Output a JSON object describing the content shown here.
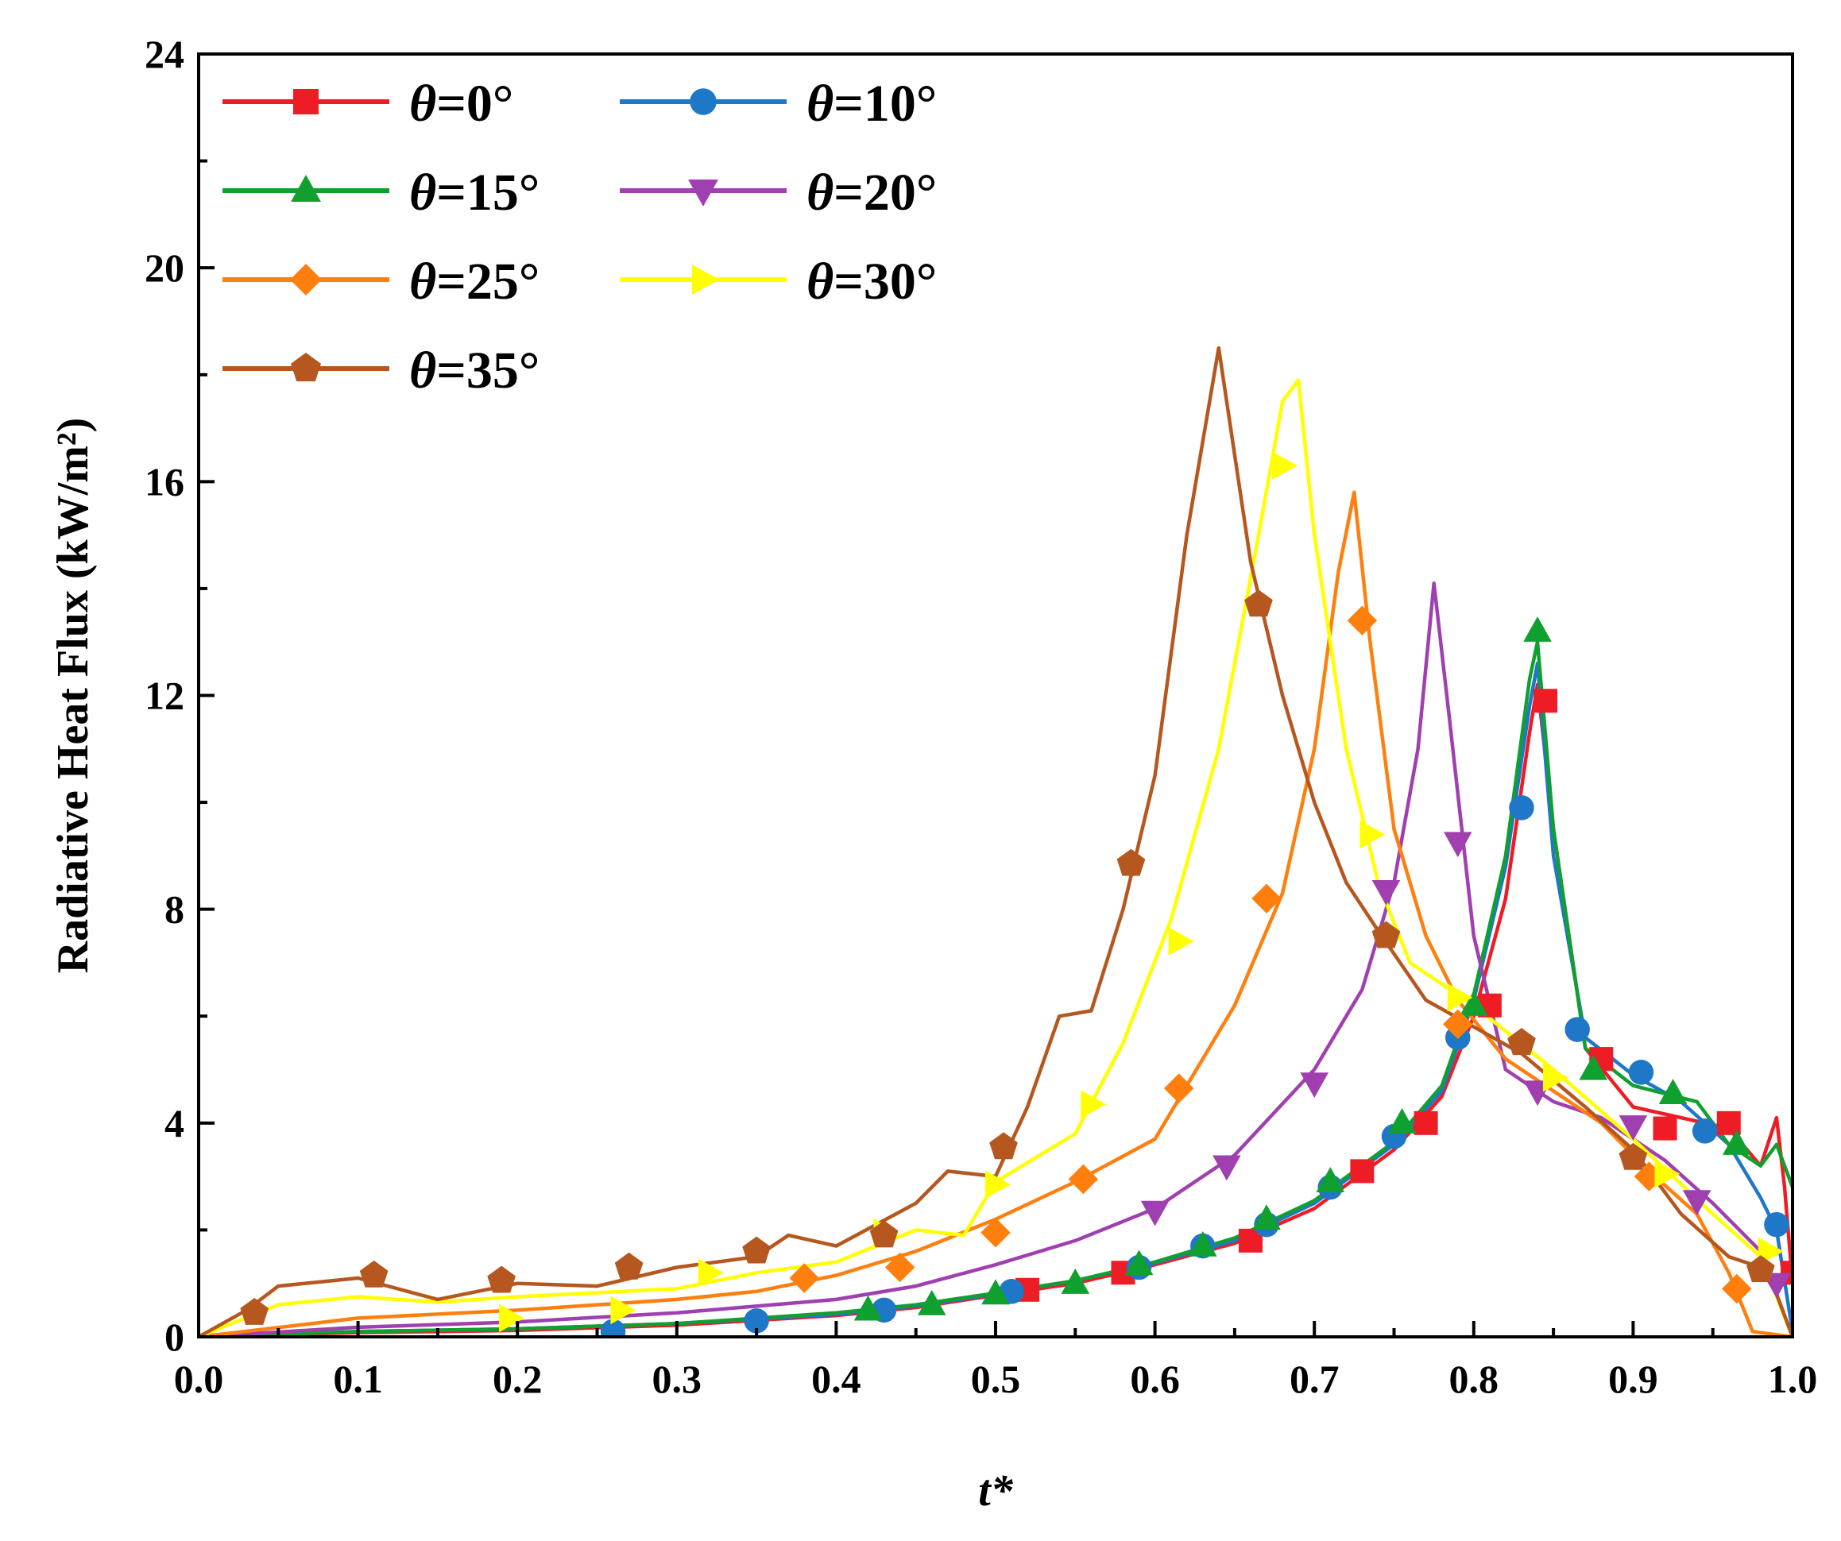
{
  "chart_data": {
    "type": "line",
    "title": "",
    "xlabel": "t*",
    "ylabel": "Radiative Heat Flux (kW/m²)",
    "xlim": [
      0.0,
      1.0
    ],
    "ylim": [
      0,
      24
    ],
    "xticks": [
      "0.0",
      "0.1",
      "0.2",
      "0.3",
      "0.4",
      "0.5",
      "0.6",
      "0.7",
      "0.8",
      "0.9",
      "1.0"
    ],
    "yticks": [
      "0",
      "4",
      "8",
      "12",
      "16",
      "20",
      "24"
    ],
    "legend_position": "top-left",
    "series": [
      {
        "name": "θ=0°",
        "prefix": "θ",
        "suffix": "=0°",
        "color": "#ee1c25",
        "marker": "square",
        "points": [
          [
            0,
            0
          ],
          [
            0.1,
            0.08
          ],
          [
            0.2,
            0.12
          ],
          [
            0.3,
            0.22
          ],
          [
            0.4,
            0.4
          ],
          [
            0.45,
            0.55
          ],
          [
            0.5,
            0.78
          ],
          [
            0.55,
            1.0
          ],
          [
            0.6,
            1.35
          ],
          [
            0.65,
            1.75
          ],
          [
            0.7,
            2.4
          ],
          [
            0.75,
            3.5
          ],
          [
            0.78,
            4.5
          ],
          [
            0.8,
            6.0
          ],
          [
            0.82,
            8.2
          ],
          [
            0.835,
            11.3
          ],
          [
            0.84,
            12.2
          ],
          [
            0.85,
            9.5
          ],
          [
            0.87,
            5.4
          ],
          [
            0.9,
            4.3
          ],
          [
            0.93,
            4.1
          ],
          [
            0.96,
            3.9
          ],
          [
            0.98,
            3.2
          ],
          [
            0.99,
            4.1
          ],
          [
            0.995,
            2.8
          ],
          [
            1.0,
            1.0
          ]
        ],
        "markers": [
          [
            0.52,
            0.88
          ],
          [
            0.58,
            1.2
          ],
          [
            0.66,
            1.8
          ],
          [
            0.73,
            3.1
          ],
          [
            0.77,
            4.0
          ],
          [
            0.81,
            6.2
          ],
          [
            0.845,
            11.9
          ],
          [
            0.88,
            5.2
          ],
          [
            0.92,
            3.9
          ],
          [
            0.96,
            4.0
          ],
          [
            1.0,
            1.2
          ]
        ]
      },
      {
        "name": "θ=10°",
        "prefix": "θ",
        "suffix": "=10°",
        "color": "#1f77c8",
        "marker": "circle",
        "points": [
          [
            0,
            0
          ],
          [
            0.1,
            0.1
          ],
          [
            0.2,
            0.15
          ],
          [
            0.3,
            0.25
          ],
          [
            0.4,
            0.42
          ],
          [
            0.45,
            0.58
          ],
          [
            0.5,
            0.8
          ],
          [
            0.55,
            1.05
          ],
          [
            0.6,
            1.38
          ],
          [
            0.65,
            1.8
          ],
          [
            0.7,
            2.5
          ],
          [
            0.75,
            3.6
          ],
          [
            0.78,
            4.6
          ],
          [
            0.8,
            6.3
          ],
          [
            0.82,
            8.8
          ],
          [
            0.835,
            11.8
          ],
          [
            0.84,
            12.6
          ],
          [
            0.85,
            9.0
          ],
          [
            0.87,
            5.6
          ],
          [
            0.9,
            4.9
          ],
          [
            0.93,
            4.4
          ],
          [
            0.96,
            3.6
          ],
          [
            0.98,
            2.6
          ],
          [
            0.99,
            2.0
          ],
          [
            1.0,
            0.1
          ]
        ],
        "markers": [
          [
            0.26,
            0.1
          ],
          [
            0.35,
            0.3
          ],
          [
            0.43,
            0.5
          ],
          [
            0.51,
            0.85
          ],
          [
            0.59,
            1.3
          ],
          [
            0.63,
            1.7
          ],
          [
            0.67,
            2.1
          ],
          [
            0.71,
            2.8
          ],
          [
            0.75,
            3.75
          ],
          [
            0.79,
            5.6
          ],
          [
            0.83,
            9.9
          ],
          [
            0.865,
            5.75
          ],
          [
            0.905,
            4.95
          ],
          [
            0.945,
            3.85
          ],
          [
            0.99,
            2.1
          ]
        ]
      },
      {
        "name": "θ=15°",
        "prefix": "θ",
        "suffix": "=15°",
        "color": "#10a030",
        "marker": "triangle-up",
        "points": [
          [
            0,
            0
          ],
          [
            0.1,
            0.1
          ],
          [
            0.2,
            0.15
          ],
          [
            0.3,
            0.25
          ],
          [
            0.4,
            0.45
          ],
          [
            0.45,
            0.6
          ],
          [
            0.5,
            0.82
          ],
          [
            0.55,
            1.05
          ],
          [
            0.6,
            1.4
          ],
          [
            0.65,
            1.85
          ],
          [
            0.7,
            2.55
          ],
          [
            0.75,
            3.65
          ],
          [
            0.78,
            4.7
          ],
          [
            0.8,
            6.4
          ],
          [
            0.82,
            9.0
          ],
          [
            0.835,
            12.3
          ],
          [
            0.84,
            13.0
          ],
          [
            0.85,
            9.5
          ],
          [
            0.87,
            5.4
          ],
          [
            0.9,
            4.7
          ],
          [
            0.94,
            4.4
          ],
          [
            0.96,
            3.6
          ],
          [
            0.98,
            3.2
          ],
          [
            0.99,
            3.6
          ],
          [
            1.0,
            2.8
          ]
        ],
        "markers": [
          [
            0.42,
            0.5
          ],
          [
            0.46,
            0.6
          ],
          [
            0.5,
            0.8
          ],
          [
            0.55,
            1.0
          ],
          [
            0.59,
            1.35
          ],
          [
            0.63,
            1.7
          ],
          [
            0.67,
            2.2
          ],
          [
            0.71,
            2.9
          ],
          [
            0.755,
            4.0
          ],
          [
            0.8,
            6.2
          ],
          [
            0.84,
            13.2
          ],
          [
            0.875,
            5.0
          ],
          [
            0.925,
            4.55
          ],
          [
            0.965,
            3.6
          ]
        ]
      },
      {
        "name": "θ=20°",
        "prefix": "θ",
        "suffix": "=20°",
        "color": "#a040b0",
        "marker": "triangle-down",
        "points": [
          [
            0,
            0
          ],
          [
            0.1,
            0.18
          ],
          [
            0.2,
            0.28
          ],
          [
            0.3,
            0.45
          ],
          [
            0.4,
            0.7
          ],
          [
            0.45,
            0.95
          ],
          [
            0.5,
            1.35
          ],
          [
            0.55,
            1.8
          ],
          [
            0.6,
            2.4
          ],
          [
            0.65,
            3.4
          ],
          [
            0.7,
            5.0
          ],
          [
            0.73,
            6.5
          ],
          [
            0.75,
            8.5
          ],
          [
            0.765,
            11.0
          ],
          [
            0.775,
            14.1
          ],
          [
            0.785,
            11.5
          ],
          [
            0.8,
            7.5
          ],
          [
            0.82,
            5.0
          ],
          [
            0.85,
            4.4
          ],
          [
            0.88,
            4.1
          ],
          [
            0.92,
            3.3
          ],
          [
            0.95,
            2.5
          ],
          [
            0.98,
            1.6
          ],
          [
            0.99,
            0.8
          ],
          [
            1.0,
            0.0
          ]
        ],
        "markers": [
          [
            0.6,
            2.35
          ],
          [
            0.645,
            3.2
          ],
          [
            0.7,
            4.75
          ],
          [
            0.745,
            8.35
          ],
          [
            0.79,
            9.25
          ],
          [
            0.84,
            4.6
          ],
          [
            0.9,
            3.95
          ],
          [
            0.94,
            2.55
          ],
          [
            0.99,
            1.0
          ]
        ]
      },
      {
        "name": "θ=25°",
        "prefix": "θ",
        "suffix": "=25°",
        "color": "#ff7f0e",
        "marker": "diamond",
        "points": [
          [
            0,
            0
          ],
          [
            0.1,
            0.35
          ],
          [
            0.2,
            0.5
          ],
          [
            0.3,
            0.7
          ],
          [
            0.35,
            0.85
          ],
          [
            0.4,
            1.15
          ],
          [
            0.45,
            1.6
          ],
          [
            0.5,
            2.2
          ],
          [
            0.55,
            2.9
          ],
          [
            0.6,
            3.7
          ],
          [
            0.62,
            4.7
          ],
          [
            0.65,
            6.2
          ],
          [
            0.68,
            8.3
          ],
          [
            0.7,
            11.0
          ],
          [
            0.715,
            14.3
          ],
          [
            0.725,
            15.8
          ],
          [
            0.735,
            13.0
          ],
          [
            0.75,
            9.5
          ],
          [
            0.77,
            7.5
          ],
          [
            0.79,
            6.3
          ],
          [
            0.82,
            5.2
          ],
          [
            0.85,
            4.6
          ],
          [
            0.88,
            4.0
          ],
          [
            0.91,
            3.1
          ],
          [
            0.94,
            2.3
          ],
          [
            0.96,
            1.2
          ],
          [
            0.975,
            0.1
          ],
          [
            1.0,
            0
          ]
        ],
        "markers": [
          [
            0.38,
            1.1
          ],
          [
            0.44,
            1.3
          ],
          [
            0.5,
            1.95
          ],
          [
            0.555,
            2.95
          ],
          [
            0.615,
            4.65
          ],
          [
            0.67,
            8.2
          ],
          [
            0.73,
            13.4
          ],
          [
            0.79,
            5.85
          ],
          [
            0.91,
            3.0
          ],
          [
            0.965,
            0.9
          ]
        ]
      },
      {
        "name": "θ=30°",
        "prefix": "θ",
        "suffix": "=30°",
        "color": "#ffff00",
        "marker": "triangle-right",
        "points": [
          [
            0,
            0
          ],
          [
            0.05,
            0.6
          ],
          [
            0.1,
            0.75
          ],
          [
            0.15,
            0.65
          ],
          [
            0.2,
            0.75
          ],
          [
            0.3,
            0.9
          ],
          [
            0.35,
            1.2
          ],
          [
            0.4,
            1.4
          ],
          [
            0.45,
            2.0
          ],
          [
            0.48,
            1.9
          ],
          [
            0.5,
            2.9
          ],
          [
            0.55,
            3.8
          ],
          [
            0.58,
            5.5
          ],
          [
            0.61,
            7.8
          ],
          [
            0.64,
            11.0
          ],
          [
            0.665,
            15.0
          ],
          [
            0.68,
            17.5
          ],
          [
            0.69,
            17.9
          ],
          [
            0.7,
            15.0
          ],
          [
            0.72,
            11.0
          ],
          [
            0.74,
            8.5
          ],
          [
            0.76,
            7.0
          ],
          [
            0.8,
            6.2
          ],
          [
            0.85,
            5.0
          ],
          [
            0.9,
            3.7
          ],
          [
            0.95,
            2.3
          ],
          [
            0.98,
            1.5
          ],
          [
            1.0,
            0
          ]
        ],
        "markers": [
          [
            0.195,
            0.35
          ],
          [
            0.265,
            0.5
          ],
          [
            0.32,
            1.2
          ],
          [
            0.43,
            1.95
          ],
          [
            0.5,
            2.85
          ],
          [
            0.56,
            4.35
          ],
          [
            0.615,
            7.4
          ],
          [
            0.68,
            16.3
          ],
          [
            0.735,
            9.4
          ],
          [
            0.79,
            6.35
          ],
          [
            0.85,
            4.85
          ],
          [
            0.92,
            3.05
          ],
          [
            0.985,
            1.6
          ]
        ]
      },
      {
        "name": "θ=35°",
        "prefix": "θ",
        "suffix": "=35°",
        "color": "#b5571e",
        "marker": "pentagon",
        "points": [
          [
            0,
            0
          ],
          [
            0.03,
            0.5
          ],
          [
            0.05,
            0.95
          ],
          [
            0.1,
            1.1
          ],
          [
            0.15,
            0.7
          ],
          [
            0.2,
            1.0
          ],
          [
            0.25,
            0.95
          ],
          [
            0.3,
            1.3
          ],
          [
            0.35,
            1.5
          ],
          [
            0.37,
            1.9
          ],
          [
            0.4,
            1.7
          ],
          [
            0.45,
            2.5
          ],
          [
            0.47,
            3.1
          ],
          [
            0.5,
            3.0
          ],
          [
            0.52,
            4.3
          ],
          [
            0.54,
            6.0
          ],
          [
            0.56,
            6.1
          ],
          [
            0.58,
            8.0
          ],
          [
            0.6,
            10.5
          ],
          [
            0.62,
            15.0
          ],
          [
            0.64,
            18.5
          ],
          [
            0.66,
            14.5
          ],
          [
            0.68,
            12.0
          ],
          [
            0.7,
            10.0
          ],
          [
            0.72,
            8.5
          ],
          [
            0.74,
            7.6
          ],
          [
            0.77,
            6.3
          ],
          [
            0.8,
            5.8
          ],
          [
            0.83,
            5.3
          ],
          [
            0.87,
            4.3
          ],
          [
            0.9,
            3.5
          ],
          [
            0.93,
            2.3
          ],
          [
            0.96,
            1.5
          ],
          [
            0.98,
            1.3
          ],
          [
            0.99,
            0.8
          ],
          [
            1.0,
            0
          ]
        ],
        "markers": [
          [
            0.035,
            0.45
          ],
          [
            0.11,
            1.15
          ],
          [
            0.19,
            1.05
          ],
          [
            0.27,
            1.3
          ],
          [
            0.35,
            1.6
          ],
          [
            0.43,
            1.9
          ],
          [
            0.505,
            3.55
          ],
          [
            0.585,
            8.85
          ],
          [
            0.665,
            13.7
          ],
          [
            0.745,
            7.5
          ],
          [
            0.83,
            5.5
          ],
          [
            0.9,
            3.35
          ],
          [
            0.98,
            1.25
          ]
        ]
      }
    ]
  }
}
